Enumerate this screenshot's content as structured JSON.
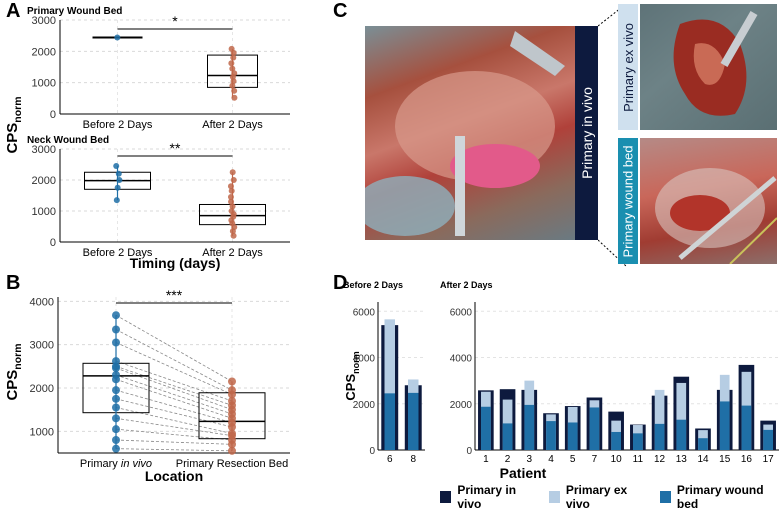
{
  "panels": {
    "a": "A",
    "b": "B",
    "c": "C",
    "d": "D"
  },
  "chart_data": [
    {
      "id": "A-top",
      "type": "box",
      "title": "Primary Wound Bed",
      "ylabel": "CPS",
      "ylabel_sub": "norm",
      "ylim": [
        0,
        3000
      ],
      "yticks": [
        0,
        1000,
        2000,
        3000
      ],
      "categories": [
        "Before 2 Days",
        "After 2 Days"
      ],
      "boxes": [
        {
          "q1": 2440,
          "median": 2440,
          "q3": 2440,
          "points": [
            2440
          ]
        },
        {
          "q1": 850,
          "median": 1230,
          "q3": 1880,
          "points": [
            520,
            740,
            900,
            1050,
            1180,
            1300,
            1450,
            1620,
            1800,
            1950,
            2080
          ]
        }
      ],
      "significance": "*"
    },
    {
      "id": "A-bottom",
      "type": "box",
      "title": "Neck Wound Bed",
      "xlabel": "Timing (days)",
      "ylabel": "CPS",
      "ylabel_sub": "norm",
      "ylim": [
        0,
        3000
      ],
      "yticks": [
        0,
        1000,
        2000,
        3000
      ],
      "categories": [
        "Before 2 Days",
        "After 2 Days"
      ],
      "boxes": [
        {
          "q1": 1700,
          "median": 1980,
          "q3": 2250,
          "points": [
            1350,
            1750,
            2000,
            2200,
            2450
          ]
        },
        {
          "q1": 560,
          "median": 850,
          "q3": 1210,
          "points": [
            200,
            350,
            480,
            600,
            700,
            820,
            900,
            1000,
            1150,
            1300,
            1450,
            1650,
            1800,
            2000,
            2250
          ]
        }
      ],
      "significance": "**"
    },
    {
      "id": "B",
      "type": "box",
      "xlabel": "Location",
      "ylabel": "CPS",
      "ylabel_sub": "norm",
      "ylim": [
        500,
        4100
      ],
      "yticks": [
        1000,
        2000,
        3000,
        4000
      ],
      "categories": [
        "Primary in vivo",
        "Primary Resection Bed"
      ],
      "cat_parts": [
        [
          "Primary ",
          "in vivo"
        ],
        [
          "Primary Resection Bed",
          ""
        ]
      ],
      "boxes": [
        {
          "q1": 1430,
          "median": 2280,
          "q3": 2570,
          "points": [
            3680,
            3350,
            3050,
            2620,
            2500,
            2460,
            2300,
            2200,
            1950,
            1750,
            1550,
            1300,
            1050,
            800,
            600
          ]
        },
        {
          "q1": 830,
          "median": 1230,
          "q3": 1890,
          "points": [
            2150,
            1950,
            1850,
            1700,
            1600,
            1500,
            1400,
            1300,
            1200,
            1100,
            950,
            900,
            800,
            700,
            550
          ]
        }
      ],
      "significance": "***"
    },
    {
      "id": "D",
      "type": "bar",
      "ylabel": "CPS",
      "ylabel_sub": "norm",
      "xlabel": "Patient",
      "ylim": [
        0,
        6400
      ],
      "yticks": [
        0,
        2000,
        4000,
        6000
      ],
      "groups": [
        {
          "title": "Before 2 Days",
          "categories": [
            "6",
            "8"
          ]
        },
        {
          "title": "After 2 Days",
          "categories": [
            "1",
            "2",
            "3",
            "4",
            "5",
            "7",
            "10",
            "11",
            "12",
            "13",
            "14",
            "15",
            "16",
            "17"
          ]
        }
      ],
      "series": [
        {
          "name": "Primary in vivo",
          "values": {
            "6": 5400,
            "8": 2800,
            "1": 2580,
            "2": 2630,
            "3": 2600,
            "4": 1590,
            "5": 1900,
            "7": 2270,
            "10": 1660,
            "11": 1100,
            "12": 2350,
            "13": 3170,
            "14": 930,
            "15": 2600,
            "16": 3680,
            "17": 1270
          }
        },
        {
          "name": "Primary ex vivo",
          "values": {
            "6": 5650,
            "8": 3050,
            "1": 2520,
            "2": 2180,
            "3": 3000,
            "4": 1540,
            "5": 1860,
            "7": 2150,
            "10": 1270,
            "11": 1080,
            "12": 2600,
            "13": 2900,
            "14": 860,
            "15": 3250,
            "16": 3380,
            "17": 1100
          }
        },
        {
          "name": "Primary wound bed",
          "values": {
            "6": 2450,
            "8": 2470,
            "1": 1870,
            "2": 1150,
            "3": 1950,
            "4": 1250,
            "5": 1190,
            "7": 1840,
            "10": 780,
            "11": 720,
            "12": 1130,
            "13": 1310,
            "14": 510,
            "15": 2100,
            "16": 1920,
            "17": 870
          }
        }
      ],
      "colors": {
        "Primary in vivo": "#0d1a3e",
        "Primary ex vivo": "#b6cde3",
        "Primary wound bed": "#1f6fa6"
      }
    }
  ],
  "photos": {
    "main_label": "Primary in vivo",
    "ex_vivo_label": "Primary ex vivo",
    "wound_bed_label": "Primary wound bed"
  },
  "colors": {
    "before_point": "#1f6fa6",
    "after_point": "#c0674a",
    "label_dark": "#0d1a3e",
    "label_light": "#cfe0ee",
    "label_teal": "#1a8fb0"
  }
}
